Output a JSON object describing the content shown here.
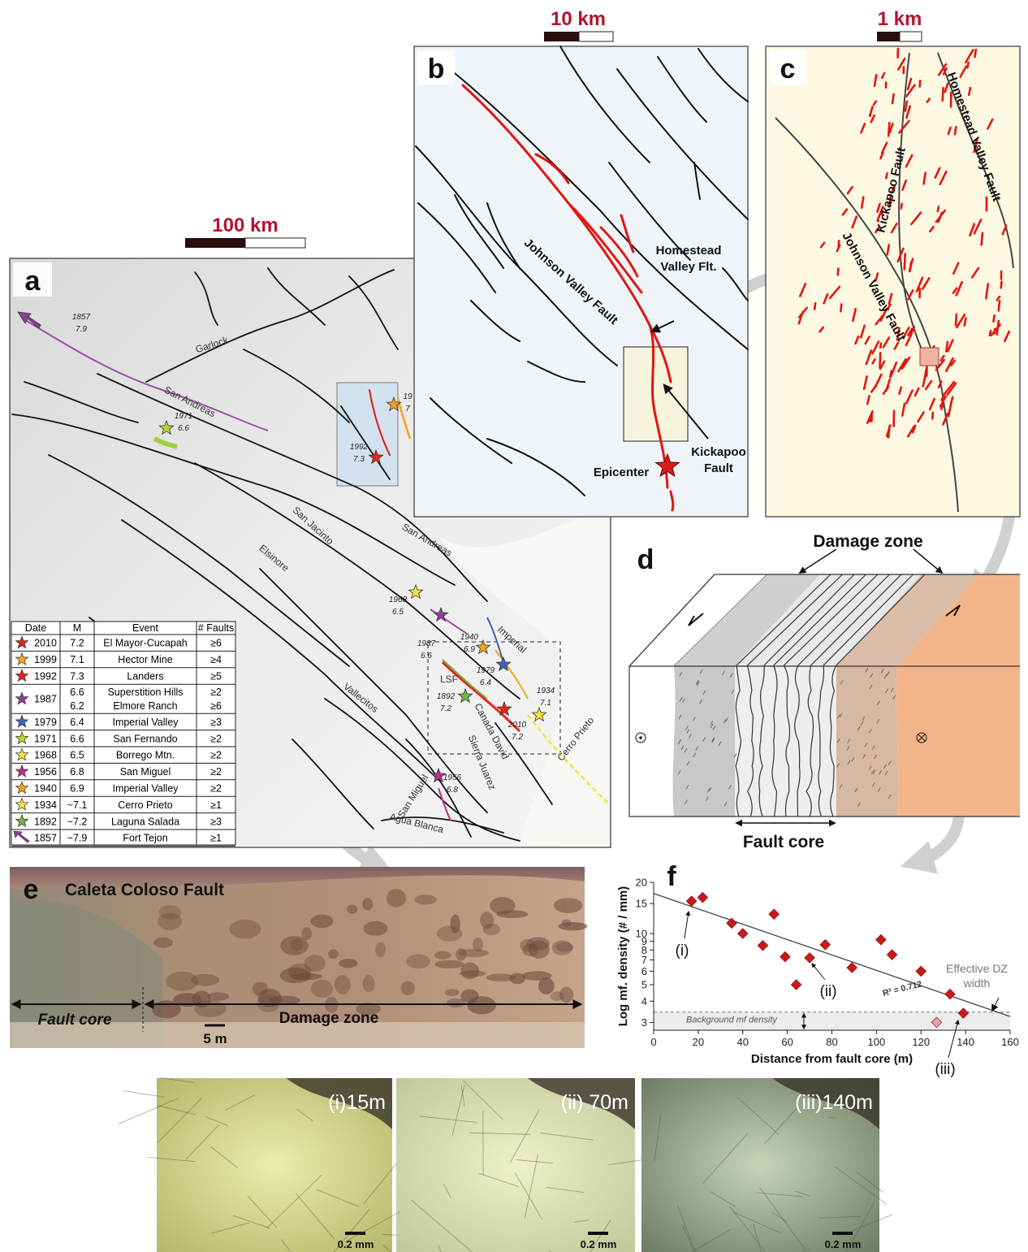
{
  "panel_a": {
    "label": "a",
    "scale_bar": "100 km",
    "fault_names": [
      "Garlock",
      "San Andreas",
      "San Jacinto",
      "Elsinore",
      "San Andreas",
      "Vallecitos",
      "Imperial",
      "LSF",
      "Canada David",
      "Sierra Juarez",
      "San Miguel",
      "Agua Blanca",
      "Cerro Prieto"
    ],
    "event_labels": [
      [
        "1857",
        "7.9"
      ],
      [
        "1971",
        "6.6"
      ],
      [
        "1992",
        "7.3"
      ],
      [
        "1968",
        "6.5"
      ],
      [
        "1987",
        "6.6"
      ],
      [
        "1940",
        "6.9"
      ],
      [
        "1979",
        "6.4"
      ],
      [
        "1934",
        "7.1"
      ],
      [
        "1892",
        "7.2"
      ],
      [
        "2010",
        "7.2"
      ],
      [
        "1956",
        "6.8"
      ],
      [
        "19",
        "7"
      ]
    ],
    "table": {
      "header": [
        "Date",
        "M",
        "Event",
        "# Faults"
      ],
      "rows": [
        [
          "2010",
          "7.2",
          "El Mayor-Cucapah",
          "≥6"
        ],
        [
          "1999",
          "7.1",
          "Hector Mine",
          "≥4"
        ],
        [
          "1992",
          "7.3",
          "Landers",
          "≥5"
        ],
        [
          "1987",
          [
            "6.6",
            "6.2"
          ],
          [
            "Superstition Hills",
            "Elmore Ranch"
          ],
          [
            "≥2",
            "≥6"
          ]
        ],
        [
          "1979",
          "6.4",
          "Imperial Valley",
          "≥3"
        ],
        [
          "1971",
          "6.6",
          "San Fernando",
          "≥2"
        ],
        [
          "1968",
          "6.5",
          "Borrego Mtn.",
          "≥2"
        ],
        [
          "1956",
          "6.8",
          "San Miguel",
          "≥2"
        ],
        [
          "1940",
          "6.9",
          "Imperial Valley",
          "≥2"
        ],
        [
          "1934",
          "~7.1",
          "Cerro Prieto",
          "≥1"
        ],
        [
          "1892",
          "~7.2",
          "Laguna Salada",
          "≥3"
        ],
        [
          "1857",
          "~7.9",
          "Fort Tejon",
          "≥1"
        ]
      ],
      "marker_colors": [
        "#e8241c",
        "#f5a21b",
        "#e8241c",
        "#8e3f9a",
        "#3d63b5",
        "#b9d431",
        "#f4e23a",
        "#c0308a",
        "#f5a21b",
        "#f4e23a",
        "#6cb546",
        "#8e3f9a"
      ]
    }
  },
  "panel_b": {
    "label": "b",
    "scale_bar": "10 km",
    "johnson": "Johnson Valley Fault",
    "homestead": [
      "Homestead",
      "Valley Flt."
    ],
    "kickapoo": [
      "Kickapoo",
      "Fault"
    ],
    "epicenter": "Epicenter"
  },
  "panel_c": {
    "label": "c",
    "scale_bar": "1 km",
    "kickapoo": "Kickapoo Fault",
    "homestead": "Homestead Valley Fault",
    "johnson": "Johnson Valley Fault"
  },
  "panel_d": {
    "label": "d",
    "damage_zone": "Damage zone",
    "fault_core": "Fault core"
  },
  "panel_e": {
    "label": "e",
    "title": "Caleta Coloso Fault",
    "fault_core": "Fault core",
    "damage_zone": "Damage zone",
    "scale_bar": "5 m"
  },
  "chart_data": {
    "type": "scatter",
    "label": "f",
    "log_y": true,
    "x_label": "Distance from fault core (m)",
    "y_label": "Log mf. density (# / mm)",
    "x": [
      17,
      22,
      35,
      40,
      49,
      54,
      59,
      64,
      70,
      77,
      89,
      102,
      107,
      120,
      127,
      133,
      139
    ],
    "values": [
      15.5,
      16.3,
      11.5,
      10,
      8.5,
      13,
      7.3,
      5,
      7.2,
      8.6,
      6.3,
      9.2,
      7.5,
      6,
      3,
      4.4,
      3.4
    ],
    "point_colors": [
      "#c81a1a",
      "#c81a1a",
      "#c81a1a",
      "#c81a1a",
      "#c81a1a",
      "#c81a1a",
      "#c81a1a",
      "#c81a1a",
      "#c81a1a",
      "#c81a1a",
      "#c81a1a",
      "#c81a1a",
      "#c81a1a",
      "#c81a1a",
      "#e8a0a0",
      "#c81a1a",
      "#c81a1a"
    ],
    "fit": {
      "x": [
        0,
        160
      ],
      "values": [
        17.2,
        3.25
      ]
    },
    "r_squared": "R² = 0.712",
    "background_range": [
      2.7,
      3.45
    ],
    "background_label": "Background mf density",
    "dz_width": 152,
    "dz_width_label": [
      "Effective DZ",
      "width"
    ],
    "annotations": [
      "(i)",
      "(ii)",
      "(iii)"
    ],
    "xlim": [
      0,
      160
    ],
    "xticks": [
      0,
      20,
      40,
      60,
      80,
      100,
      120,
      140,
      160
    ],
    "ylim": [
      2.7,
      20
    ],
    "yticks": [
      3,
      4,
      5,
      6,
      7,
      8,
      9,
      10,
      15,
      20
    ]
  },
  "micrographs": [
    {
      "label": "(i)15m",
      "scale_bar": "0.2 mm"
    },
    {
      "label": "(ii) 70m",
      "scale_bar": "0.2 mm"
    },
    {
      "label": "(iii)140m",
      "scale_bar": "0.2 mm"
    }
  ]
}
